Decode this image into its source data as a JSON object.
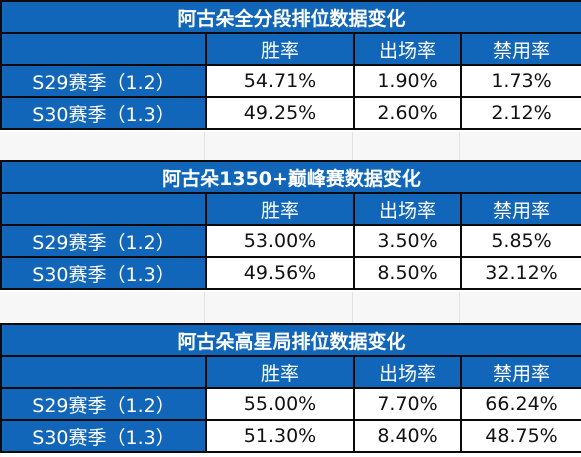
{
  "colors": {
    "header_blue": "#1166b9",
    "border": "#0a0a0a",
    "value_bg": "#ffffff",
    "gap_bg": "#f7f7f7"
  },
  "columns": [
    "胜率",
    "出场率",
    "禁用率"
  ],
  "sections": [
    {
      "title": "阿古朵全分段排位数据变化",
      "rows": [
        {
          "label": "S29赛季（1.2）",
          "win_rate": "54.71%",
          "pick_rate": "1.90%",
          "ban_rate": "1.73%"
        },
        {
          "label": "S30赛季（1.3）",
          "win_rate": "49.25%",
          "pick_rate": "2.60%",
          "ban_rate": "2.12%"
        }
      ]
    },
    {
      "title": "阿古朵1350+巅峰赛数据变化",
      "rows": [
        {
          "label": "S29赛季（1.2）",
          "win_rate": "53.00%",
          "pick_rate": "3.50%",
          "ban_rate": "5.85%"
        },
        {
          "label": "S30赛季（1.3）",
          "win_rate": "49.56%",
          "pick_rate": "8.50%",
          "ban_rate": "32.12%"
        }
      ]
    },
    {
      "title": "阿古朵高星局排位数据变化",
      "rows": [
        {
          "label": "S29赛季（1.2）",
          "win_rate": "55.00%",
          "pick_rate": "7.70%",
          "ban_rate": "66.24%"
        },
        {
          "label": "S30赛季（1.3）",
          "win_rate": "51.30%",
          "pick_rate": "8.40%",
          "ban_rate": "48.75%"
        }
      ]
    }
  ]
}
